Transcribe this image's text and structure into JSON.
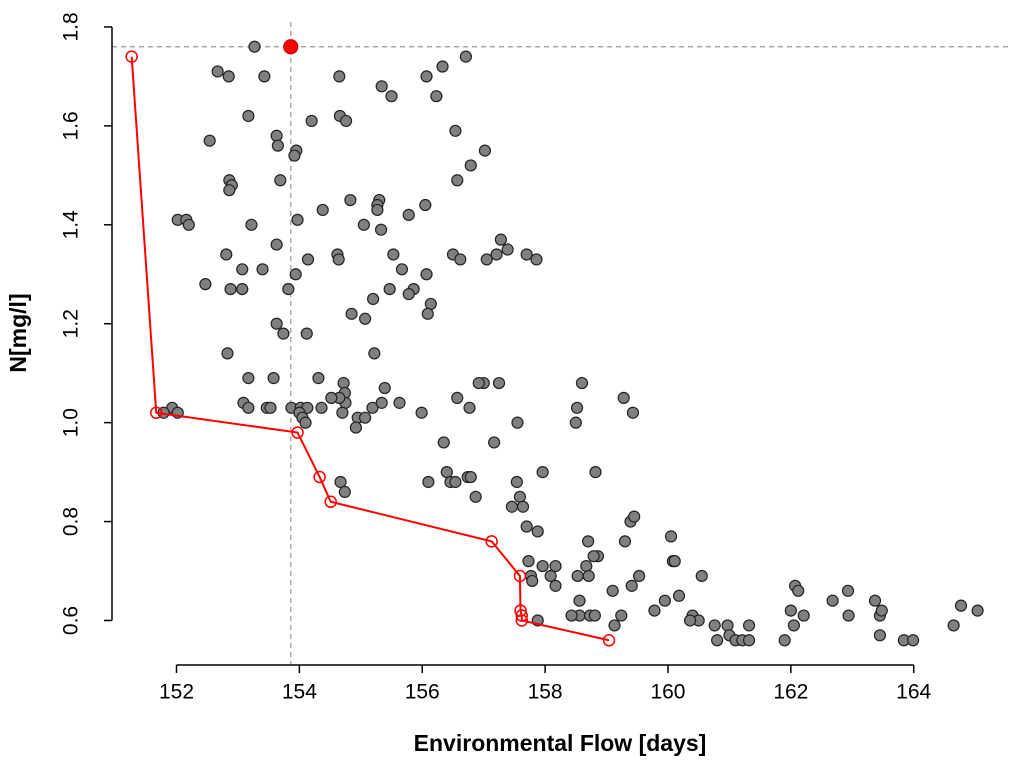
{
  "chart_data": {
    "type": "scatter",
    "xlabel": "Environmental Flow [days]",
    "ylabel": "N[mg/l]",
    "xlim": [
      150.95,
      165.6
    ],
    "ylim": [
      0.51,
      1.81
    ],
    "xticks": [
      152,
      154,
      156,
      158,
      160,
      162,
      164
    ],
    "yticks": [
      0.6,
      0.8,
      {
        "value": 1,
        "label": "1.0"
      },
      1.2,
      1.4,
      1.6,
      1.8
    ],
    "reference_lines": {
      "x": 153.86,
      "y": 1.76
    },
    "series": [
      {
        "type": "scatter",
        "color": "#808080",
        "x": [
          153.27,
          152.67,
          152.85,
          153.43,
          154.65,
          156.33,
          156.71,
          155.34,
          155.5,
          156.23,
          156.07,
          153.17,
          154.66,
          154.76,
          154.2,
          152.54,
          153.63,
          153.65,
          153.95,
          153.92,
          156.54,
          157.02,
          156.79,
          156.57,
          152.86,
          152.9,
          152.86,
          153.69,
          154.83,
          155.3,
          155.27,
          155.27,
          154.38,
          156.05,
          155.78,
          153.97,
          152.02,
          152.16,
          152.2,
          153.22,
          155.05,
          155.33,
          157.28,
          157.21,
          157.39,
          157.05,
          157.7,
          157.86,
          156.5,
          156.62,
          154.62,
          154.64,
          154.14,
          152.81,
          153.63,
          155.53,
          153.07,
          153.4,
          153.94,
          155.67,
          156.07,
          152.47,
          152.88,
          153.07,
          153.82,
          155.47,
          155.86,
          155.78,
          155.2,
          156.14,
          156.09,
          154.85,
          155.07,
          153.63,
          153.74,
          154.12,
          152.83,
          155.22,
          153.17,
          153.58,
          154.31,
          154.72,
          155.39,
          157.0,
          156.92,
          157.25,
          158.6,
          154.74,
          154.75,
          154.65,
          154.52,
          156.57,
          159.28,
          153.09,
          155.63,
          158.52,
          158.5,
          159.43,
          153.17,
          153.47,
          153.53,
          153.87,
          154.02,
          154.13,
          154.36,
          151.93,
          155.19,
          155.34,
          156.77,
          155.99,
          154.7,
          154.95,
          155.07,
          154.0,
          154.05,
          154.1,
          154.92,
          157.55,
          152.02,
          151.79,
          156.35,
          157.17,
          156.4,
          157.96,
          158.82,
          156.46,
          156.54,
          156.1,
          154.67,
          154.74,
          157.54,
          156.74,
          156.79,
          156.87,
          157.59,
          157.46,
          157.64,
          159.39,
          159.45,
          157.7,
          157.88,
          158.7,
          159.3,
          160.05,
          158.86,
          158.79,
          160.08,
          160.11,
          157.73,
          158.17,
          157.96,
          158.67,
          157.77,
          158.09,
          158.53,
          158.71,
          159.53,
          160.55,
          157.79,
          158.17,
          159.41,
          159.1,
          160.18,
          158.56,
          159.95,
          162.68,
          163.37,
          164.77,
          159.78,
          158.56,
          158.43,
          158.73,
          158.81,
          159.24,
          160.4,
          160.5,
          160.36,
          160.76,
          160.97,
          161.32,
          162.05,
          162.21,
          162.94,
          163.45,
          163.48,
          162.0,
          165.04,
          162.07,
          162.12,
          162.93,
          157.88,
          159.13,
          163.45,
          161.0,
          161.1,
          161.21,
          160.8,
          161.32,
          161.9,
          163.84,
          163.99,
          164.65
        ],
        "y": [
          1.76,
          1.71,
          1.7,
          1.7,
          1.7,
          1.72,
          1.74,
          1.68,
          1.66,
          1.66,
          1.7,
          1.62,
          1.62,
          1.61,
          1.61,
          1.57,
          1.58,
          1.56,
          1.55,
          1.54,
          1.59,
          1.55,
          1.52,
          1.49,
          1.49,
          1.48,
          1.47,
          1.49,
          1.45,
          1.45,
          1.44,
          1.43,
          1.43,
          1.44,
          1.42,
          1.41,
          1.41,
          1.41,
          1.4,
          1.4,
          1.4,
          1.39,
          1.37,
          1.34,
          1.35,
          1.33,
          1.34,
          1.33,
          1.34,
          1.33,
          1.34,
          1.33,
          1.33,
          1.34,
          1.36,
          1.34,
          1.31,
          1.31,
          1.3,
          1.31,
          1.3,
          1.28,
          1.27,
          1.27,
          1.27,
          1.27,
          1.27,
          1.26,
          1.25,
          1.24,
          1.22,
          1.22,
          1.21,
          1.2,
          1.18,
          1.18,
          1.14,
          1.14,
          1.09,
          1.09,
          1.09,
          1.08,
          1.07,
          1.08,
          1.08,
          1.08,
          1.08,
          1.06,
          1.04,
          1.05,
          1.05,
          1.05,
          1.05,
          1.04,
          1.04,
          1.03,
          1.0,
          1.02,
          1.03,
          1.03,
          1.03,
          1.03,
          1.03,
          1.03,
          1.03,
          1.03,
          1.03,
          1.04,
          1.03,
          1.02,
          1.02,
          1.01,
          1.01,
          1.02,
          1.01,
          1.0,
          0.99,
          1.0,
          1.02,
          1.02,
          0.96,
          0.96,
          0.9,
          0.9,
          0.9,
          0.88,
          0.88,
          0.88,
          0.88,
          0.86,
          0.88,
          0.89,
          0.89,
          0.85,
          0.85,
          0.83,
          0.83,
          0.8,
          0.81,
          0.79,
          0.78,
          0.76,
          0.76,
          0.77,
          0.73,
          0.73,
          0.72,
          0.72,
          0.72,
          0.71,
          0.71,
          0.71,
          0.69,
          0.69,
          0.69,
          0.69,
          0.69,
          0.69,
          0.68,
          0.67,
          0.67,
          0.66,
          0.65,
          0.64,
          0.64,
          0.64,
          0.64,
          0.63,
          0.62,
          0.61,
          0.61,
          0.61,
          0.61,
          0.61,
          0.61,
          0.6,
          0.6,
          0.59,
          0.59,
          0.59,
          0.59,
          0.61,
          0.61,
          0.61,
          0.62,
          0.62,
          0.62,
          0.67,
          0.66,
          0.66,
          0.6,
          0.59,
          0.57,
          0.57,
          0.56,
          0.56,
          0.56,
          0.56,
          0.56,
          0.56,
          0.56,
          0.59
        ]
      },
      {
        "type": "line",
        "color": "#ff0000",
        "x": [
          151.27,
          151.67,
          153.97,
          154.33,
          154.51,
          157.13,
          157.59,
          157.6,
          157.62,
          157.62,
          159.04
        ],
        "y": [
          1.74,
          1.02,
          0.98,
          0.89,
          0.84,
          0.76,
          0.69,
          0.62,
          0.61,
          0.6,
          0.56
        ]
      },
      {
        "type": "scatter",
        "color": "#ff0000",
        "x": [
          153.86
        ],
        "y": [
          1.76
        ]
      }
    ]
  }
}
